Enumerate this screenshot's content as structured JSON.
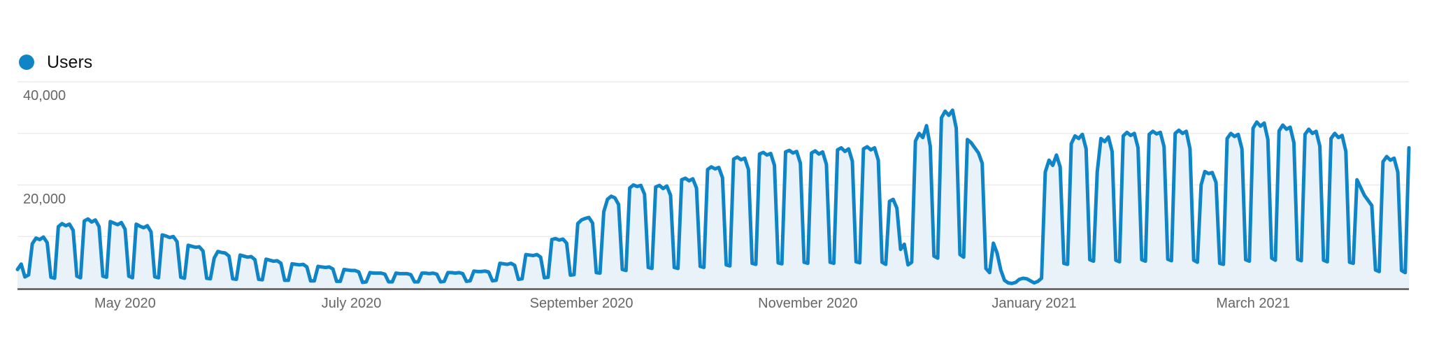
{
  "legend": {
    "label": "Users"
  },
  "colors": {
    "line": "#0f85c7",
    "area_fill": "#e9f2f9",
    "gridline": "#ececec",
    "axis_line": "#555555",
    "tick_text": "#666666"
  },
  "y_axis": {
    "tick_labels": [
      {
        "text": "40,000",
        "value": 40000
      },
      {
        "text": "20,000",
        "value": 20000
      }
    ]
  },
  "chart_data": {
    "type": "area",
    "title": "Users",
    "interval": "daily",
    "x_start": "2020-04-02",
    "x_end": "2021-04-12",
    "ylim": [
      0,
      40000
    ],
    "y_gridlines": [
      10000,
      20000,
      30000,
      40000
    ],
    "grid": "horizontal-only",
    "legend_position": "top-left",
    "x_ticks": [
      {
        "label": "May 2020",
        "day_index": 29
      },
      {
        "label": "July 2020",
        "day_index": 90
      },
      {
        "label": "September 2020",
        "day_index": 152
      },
      {
        "label": "November 2020",
        "day_index": 213
      },
      {
        "label": "January 2021",
        "day_index": 274
      },
      {
        "label": "March 2021",
        "day_index": 333
      }
    ],
    "series": [
      {
        "name": "Users",
        "values": [
          3600,
          4650,
          2150,
          2550,
          8600,
          9700,
          9400,
          9900,
          8800,
          2100,
          1900,
          11900,
          12500,
          12100,
          12400,
          11200,
          2300,
          2000,
          13000,
          13400,
          12800,
          13200,
          11900,
          2300,
          2100,
          12900,
          12600,
          12300,
          12700,
          11400,
          2300,
          2000,
          12400,
          12000,
          11700,
          12100,
          10900,
          2200,
          2000,
          10300,
          10100,
          9800,
          10000,
          9000,
          2100,
          1900,
          8300,
          8100,
          7900,
          8000,
          7200,
          1900,
          1800,
          5800,
          7100,
          6900,
          6800,
          6200,
          1800,
          1700,
          6400,
          6200,
          6000,
          6100,
          5500,
          1700,
          1600,
          5600,
          5400,
          5200,
          5300,
          4800,
          1500,
          1500,
          4700,
          4600,
          4500,
          4600,
          4100,
          1400,
          1400,
          4200,
          4100,
          4000,
          4100,
          3700,
          1300,
          1300,
          3600,
          3500,
          3400,
          3400,
          3100,
          1100,
          1200,
          3000,
          2900,
          2900,
          2900,
          2700,
          1200,
          1200,
          2900,
          2800,
          2800,
          2800,
          2600,
          1200,
          1200,
          2900,
          2900,
          2800,
          2900,
          2700,
          1200,
          1300,
          3000,
          3000,
          2900,
          3000,
          2800,
          1300,
          1400,
          3300,
          3200,
          3200,
          3300,
          3100,
          1400,
          1500,
          4800,
          4700,
          4600,
          4800,
          4400,
          1700,
          1800,
          6500,
          6400,
          6300,
          6500,
          6000,
          2000,
          2100,
          9400,
          9600,
          9300,
          9500,
          8700,
          2500,
          2600,
          12500,
          13200,
          13500,
          13700,
          12600,
          3000,
          2900,
          14800,
          17200,
          17800,
          17500,
          16200,
          3600,
          3400,
          19400,
          20000,
          19700,
          19900,
          18200,
          4000,
          3800,
          19600,
          19900,
          19300,
          19800,
          18000,
          4000,
          3800,
          21000,
          21300,
          20800,
          21200,
          19400,
          4200,
          4000,
          23000,
          23500,
          23100,
          23400,
          21400,
          4500,
          4300,
          25000,
          25400,
          24900,
          25200,
          23000,
          4800,
          4600,
          26000,
          26300,
          25800,
          26100,
          23800,
          4900,
          4700,
          26400,
          26700,
          26200,
          26500,
          24200,
          5000,
          4800,
          26200,
          26600,
          26000,
          26400,
          24000,
          5000,
          4800,
          26800,
          27200,
          26500,
          27000,
          24600,
          5100,
          4900,
          27000,
          27400,
          26800,
          27200,
          24800,
          5000,
          4600,
          16800,
          17200,
          15500,
          7500,
          8500,
          4500,
          5000,
          28500,
          30000,
          29200,
          31500,
          27500,
          6200,
          5800,
          33000,
          34300,
          33500,
          34500,
          31000,
          6500,
          6000,
          28800,
          28200,
          27200,
          26200,
          24200,
          3800,
          3000,
          8700,
          6800,
          3500,
          1500,
          1000,
          900,
          1100,
          1700,
          1900,
          1800,
          1400,
          1000,
          1300,
          1900,
          22500,
          24800,
          23800,
          25800,
          23500,
          4800,
          4600,
          28000,
          29500,
          29000,
          29800,
          27000,
          5500,
          5200,
          22500,
          29000,
          28400,
          29300,
          26500,
          5400,
          5100,
          29500,
          30200,
          29600,
          30000,
          27200,
          5500,
          5200,
          29800,
          30400,
          29900,
          30200,
          27400,
          5600,
          5300,
          30000,
          30600,
          30000,
          30400,
          27000,
          5400,
          5000,
          20000,
          22600,
          22200,
          22400,
          20500,
          4800,
          4600,
          29000,
          30000,
          29400,
          29800,
          27000,
          5500,
          5200,
          31000,
          32200,
          31400,
          32000,
          28800,
          5800,
          5400,
          30500,
          31600,
          30800,
          31200,
          28200,
          5600,
          5300,
          29800,
          30800,
          30000,
          30400,
          27500,
          5400,
          5100,
          29000,
          30000,
          29200,
          29600,
          26500,
          5000,
          4800,
          21000,
          19500,
          18000,
          17000,
          16000,
          3500,
          3200,
          24500,
          25500,
          24800,
          25200,
          22500,
          3400,
          3000,
          27200
        ]
      }
    ]
  }
}
